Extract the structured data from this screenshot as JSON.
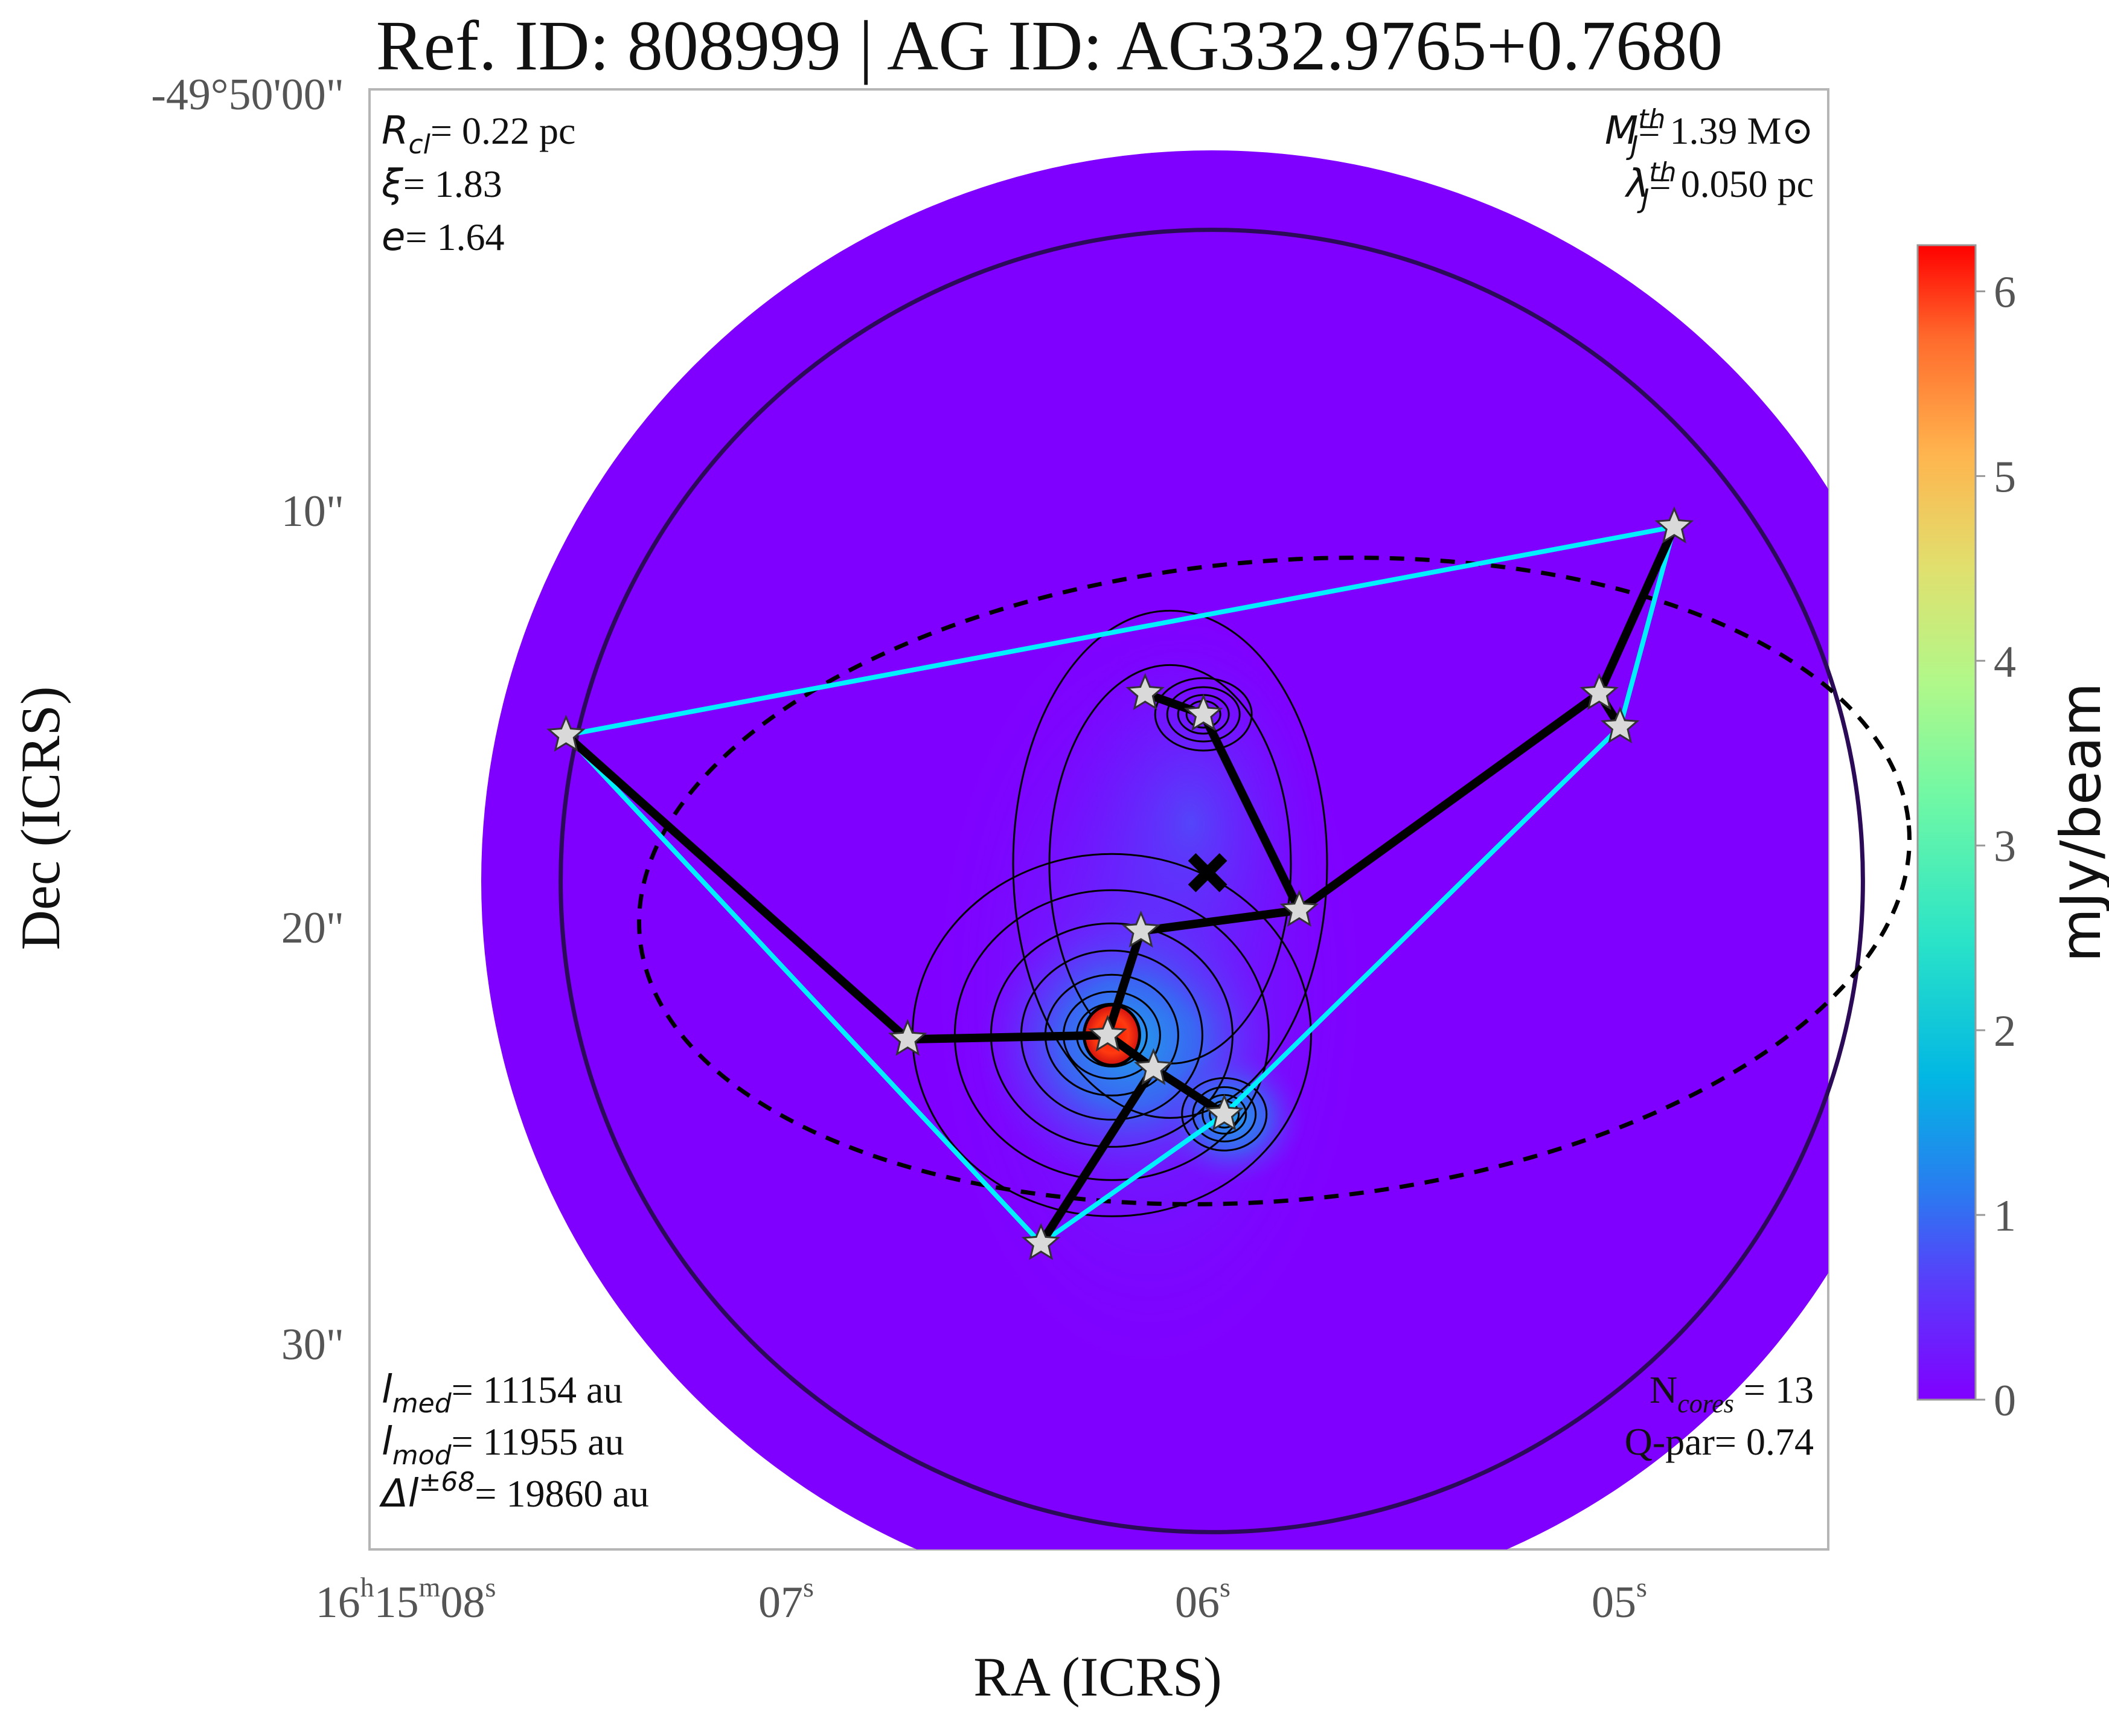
{
  "chart_data": {
    "type": "heatmap",
    "title": "Ref. ID: 808999 | AG ID: AG332.9765+0.7680",
    "xlabel": "RA (ICRS)",
    "ylabel": "Dec (ICRS)",
    "x_ticks": [
      {
        "h": "16",
        "m": "15",
        "s": "08",
        "full": true
      },
      {
        "s": "07"
      },
      {
        "s": "06"
      },
      {
        "s": "05"
      }
    ],
    "y_ticks": [
      "-49°50'00\"",
      "10\"",
      "20\"",
      "30\""
    ],
    "y_tick_values": [
      0,
      10,
      20,
      30
    ],
    "x_tick_values": [
      8,
      7,
      6,
      5
    ],
    "colorbar": {
      "label": "mJy/beam",
      "ticks": [
        "0",
        "1",
        "2",
        "3",
        "4",
        "5",
        "6"
      ],
      "range": [
        0,
        6.25
      ],
      "colormap": "rainbow"
    },
    "annotations": {
      "top_left": [
        {
          "sym": "R",
          "sub": "cl",
          "val": "= 0.22 pc"
        },
        {
          "sym": "ξ",
          "sub": "",
          "val": "= 1.83"
        },
        {
          "sym": "e",
          "sub": "",
          "val": "= 1.64"
        }
      ],
      "top_right": [
        {
          "sym": "M",
          "sup": "th",
          "sub": "J",
          "val": "= 1.39 M⊙"
        },
        {
          "sym": "λ",
          "sup": "th",
          "sub": "J",
          "val": "= 0.050 pc"
        }
      ],
      "bottom_left": [
        {
          "sym": "l",
          "sub": "med",
          "val": "= 11154 au"
        },
        {
          "sym": "l",
          "sub": "mod",
          "val": "= 11955 au"
        },
        {
          "sym": "Δl",
          "sup": "±68",
          "val": "= 19860 au"
        }
      ],
      "bottom_right": [
        {
          "pre": "N",
          "sub": "cores",
          "val": " = 13"
        },
        {
          "pre": "Q-par",
          "sub": "",
          "val": "= 0.74"
        }
      ]
    },
    "cores": [
      {
        "ra_s": 7.55,
        "dec_arcsec": 15.4
      },
      {
        "ra_s": 6.16,
        "dec_arcsec": 14.4
      },
      {
        "ra_s": 6.02,
        "dec_arcsec": 14.9
      },
      {
        "ra_s": 5.07,
        "dec_arcsec": 14.4
      },
      {
        "ra_s": 5.02,
        "dec_arcsec": 15.2
      },
      {
        "ra_s": 4.89,
        "dec_arcsec": 10.4
      },
      {
        "ra_s": 5.79,
        "dec_arcsec": 19.6
      },
      {
        "ra_s": 6.17,
        "dec_arcsec": 20.1
      },
      {
        "ra_s": 6.25,
        "dec_arcsec": 22.6
      },
      {
        "ra_s": 6.14,
        "dec_arcsec": 23.4
      },
      {
        "ra_s": 5.97,
        "dec_arcsec": 24.5
      },
      {
        "ra_s": 6.73,
        "dec_arcsec": 22.7
      },
      {
        "ra_s": 6.41,
        "dec_arcsec": 27.6
      }
    ],
    "mst_edges": [
      [
        11,
        8
      ],
      [
        8,
        9
      ],
      [
        9,
        10
      ],
      [
        9,
        12
      ],
      [
        8,
        7
      ],
      [
        7,
        6
      ],
      [
        6,
        2
      ],
      [
        2,
        1
      ],
      [
        6,
        3
      ],
      [
        3,
        4
      ],
      [
        3,
        5
      ],
      [
        11,
        0
      ]
    ],
    "hull": [
      0,
      5,
      4,
      10,
      12
    ],
    "centroid": {
      "ra_s": 6.01,
      "dec_arcsec": 18.7
    },
    "peak": {
      "ra_s": 6.24,
      "dec_arcsec": 22.6,
      "value": 6.2
    },
    "cluster_ellipse": {
      "ra_s": 5.85,
      "dec_arcsec": 18.9,
      "a_arcsec": 15.0,
      "b_arcsec": 7.6
    },
    "outer_circle": {
      "ra_s": 6.0,
      "dec_arcsec": 18.9,
      "r_arcsec": 15.6
    },
    "colors": {
      "background_map": "#8000ff",
      "hull_line": "#00f0ff",
      "mst_line": "#000000",
      "circle_line": "#2b0a58"
    }
  }
}
